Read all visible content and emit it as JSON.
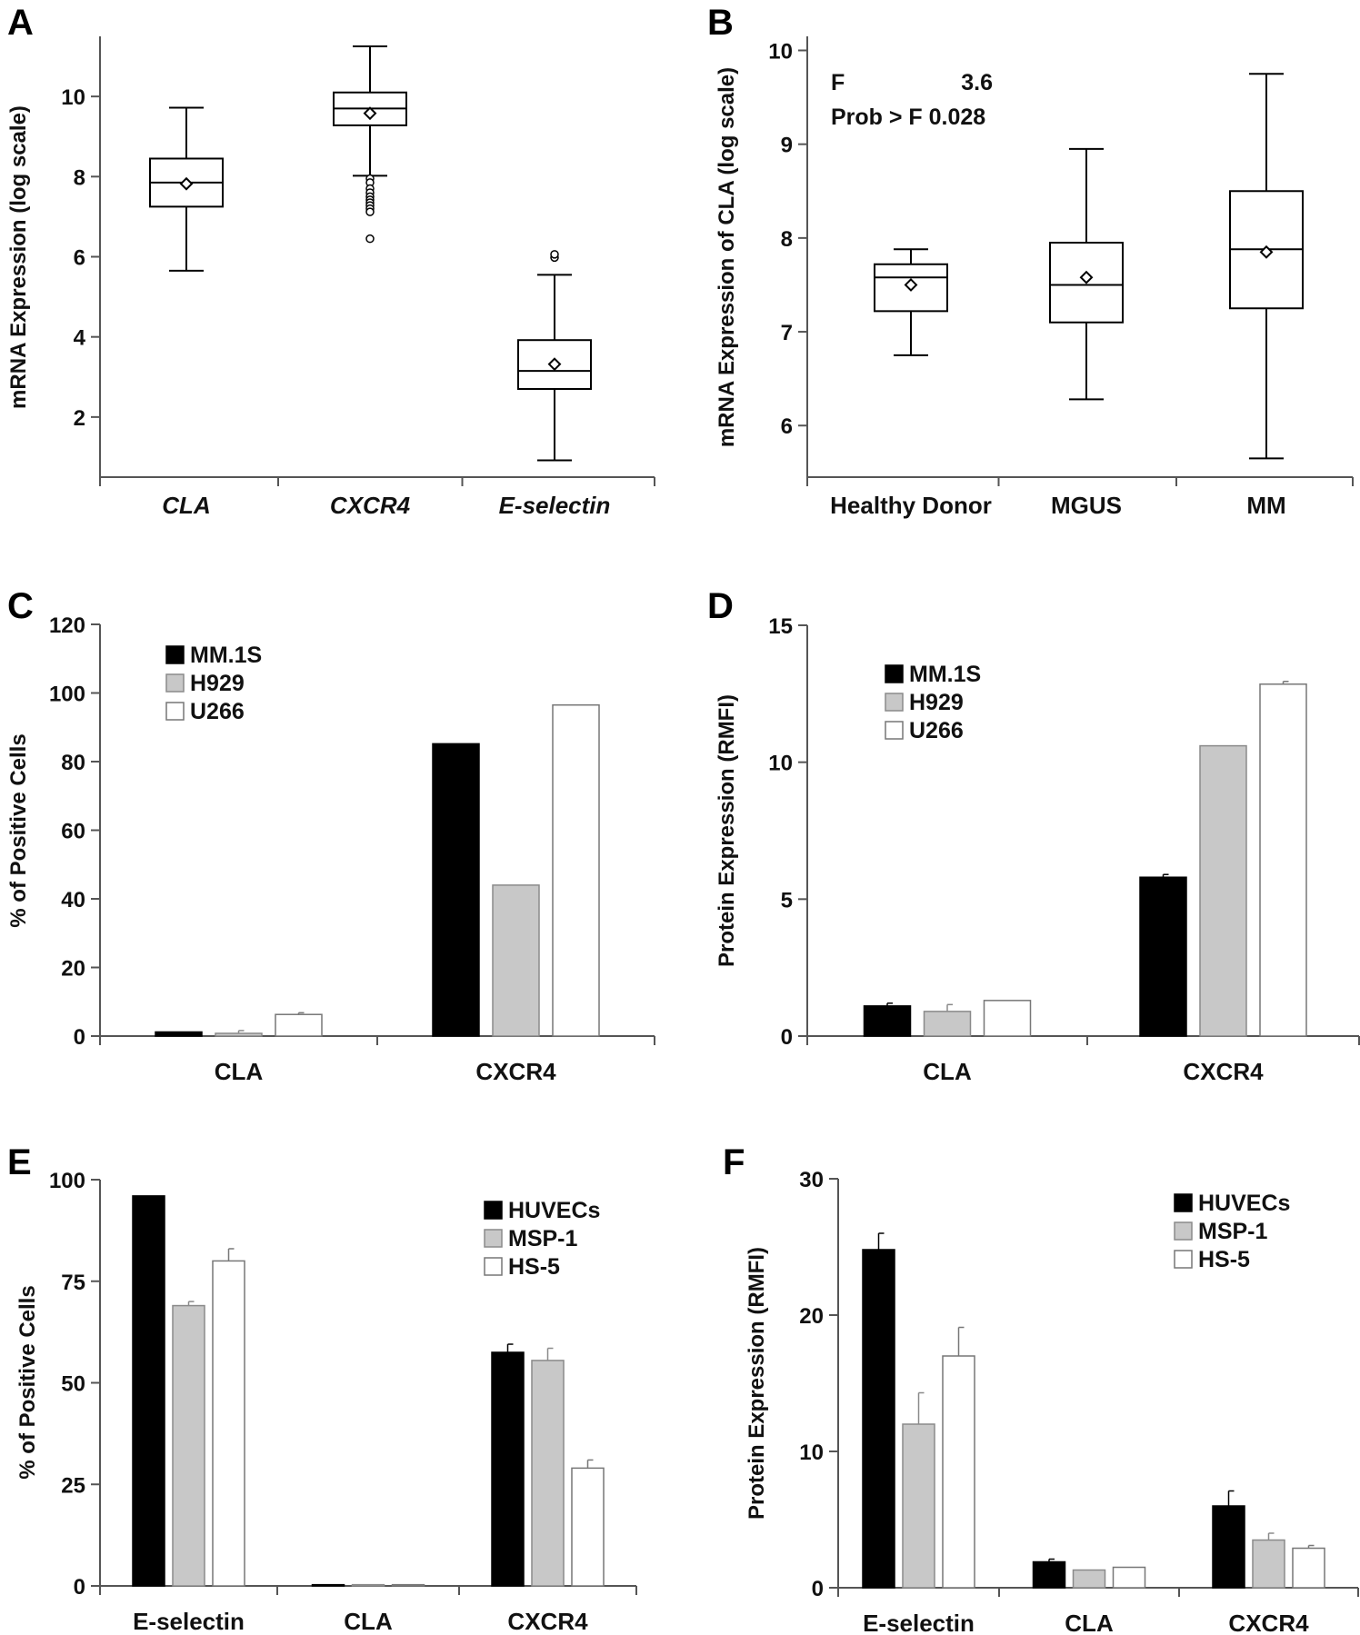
{
  "chart_data": [
    {
      "panel": "A",
      "type": "box",
      "ylabel": "mRNA Expression (log scale)",
      "ylim": [
        0.5,
        11.5
      ],
      "yticks": [
        2,
        4,
        6,
        8,
        10
      ],
      "categories": [
        "CLA",
        "CXCR4",
        "E-selectin"
      ],
      "boxes": [
        {
          "min": 5.65,
          "q1": 7.25,
          "median": 7.85,
          "q3": 8.45,
          "max": 9.72,
          "mean": 7.82,
          "outliers": []
        },
        {
          "min": 8.02,
          "q1": 9.28,
          "median": 9.7,
          "q3": 10.1,
          "max": 11.25,
          "mean": 9.58,
          "outliers": [
            7.95,
            7.85,
            7.7,
            7.6,
            7.5,
            7.42,
            7.35,
            7.28,
            7.2,
            7.12,
            6.45
          ]
        },
        {
          "min": 0.92,
          "q1": 2.7,
          "median": 3.15,
          "q3": 3.92,
          "max": 5.55,
          "mean": 3.32,
          "outliers": [
            5.98,
            6.06
          ]
        }
      ]
    },
    {
      "panel": "B",
      "type": "box",
      "ylabel": "mRNA Expression of CLA (log scale)",
      "ylim": [
        5.45,
        10.15
      ],
      "yticks": [
        6,
        7,
        8,
        9,
        10
      ],
      "categories": [
        "Healthy Donor",
        "MGUS",
        "MM"
      ],
      "annotation": {
        "f_label": "F",
        "f_value": "3.6",
        "prob_label": "Prob > F 0.028"
      },
      "boxes": [
        {
          "min": 6.75,
          "q1": 7.22,
          "median": 7.58,
          "q3": 7.72,
          "max": 7.88,
          "mean": 7.5
        },
        {
          "min": 6.28,
          "q1": 7.1,
          "median": 7.5,
          "q3": 7.95,
          "max": 8.95,
          "mean": 7.58
        },
        {
          "min": 5.65,
          "q1": 7.25,
          "median": 7.88,
          "q3": 8.5,
          "max": 9.75,
          "mean": 7.85
        }
      ]
    },
    {
      "panel": "C",
      "type": "bar",
      "ylabel": "% of Positive Cells",
      "ylim": [
        0,
        120
      ],
      "yticks": [
        0,
        20,
        40,
        60,
        80,
        100,
        120
      ],
      "categories": [
        "CLA",
        "CXCR4"
      ],
      "series": [
        {
          "name": "MM.1S",
          "values": [
            1.2,
            85.2
          ],
          "errors": [
            0,
            0
          ]
        },
        {
          "name": "H929",
          "values": [
            0.8,
            44
          ],
          "errors": [
            0.8,
            0
          ]
        },
        {
          "name": "U266",
          "values": [
            6.3,
            96.5
          ],
          "errors": [
            0.5,
            0
          ]
        }
      ]
    },
    {
      "panel": "D",
      "type": "bar",
      "ylabel": "Protein Expression (RMFI)",
      "ylim": [
        0,
        15
      ],
      "yticks": [
        0,
        5,
        10,
        15
      ],
      "categories": [
        "CLA",
        "CXCR4"
      ],
      "series": [
        {
          "name": "MM.1S",
          "values": [
            1.1,
            5.8
          ],
          "errors": [
            0.1,
            0.1
          ]
        },
        {
          "name": "H929",
          "values": [
            0.9,
            10.6
          ],
          "errors": [
            0.25,
            0
          ]
        },
        {
          "name": "U266",
          "values": [
            1.3,
            12.85
          ],
          "errors": [
            0,
            0.1
          ]
        }
      ]
    },
    {
      "panel": "E",
      "type": "bar",
      "ylabel": "% of Positive Cells",
      "ylim": [
        0,
        100
      ],
      "yticks": [
        0,
        25,
        50,
        75,
        100
      ],
      "categories": [
        "E-selectin",
        "CLA",
        "CXCR4"
      ],
      "series": [
        {
          "name": "HUVECs",
          "values": [
            96,
            0.3,
            57.5
          ],
          "errors": [
            0,
            0,
            2
          ]
        },
        {
          "name": "MSP-1",
          "values": [
            69,
            0.3,
            55.5
          ],
          "errors": [
            1,
            0,
            3
          ]
        },
        {
          "name": "HS-5",
          "values": [
            80,
            0.3,
            29
          ],
          "errors": [
            3,
            0,
            2
          ]
        }
      ]
    },
    {
      "panel": "F",
      "type": "bar",
      "ylabel": "Protein Expression (RMFI)",
      "ylim": [
        0,
        30
      ],
      "yticks": [
        0,
        10,
        20,
        30
      ],
      "categories": [
        "E-selectin",
        "CLA",
        "CXCR4"
      ],
      "series": [
        {
          "name": "HUVECs",
          "values": [
            24.8,
            1.9,
            6
          ],
          "errors": [
            1.2,
            0.2,
            1.1
          ]
        },
        {
          "name": "MSP-1",
          "values": [
            12,
            1.3,
            3.5
          ],
          "errors": [
            2.3,
            0,
            0.5
          ]
        },
        {
          "name": "HS-5",
          "values": [
            17,
            1.5,
            2.9
          ],
          "errors": [
            2.1,
            0,
            0.2
          ]
        }
      ]
    }
  ],
  "colors": {
    "series1": "#000000",
    "series2": "#c8c8c8",
    "series3": "#ffffff",
    "axis": "#555555",
    "text": "#111111"
  }
}
